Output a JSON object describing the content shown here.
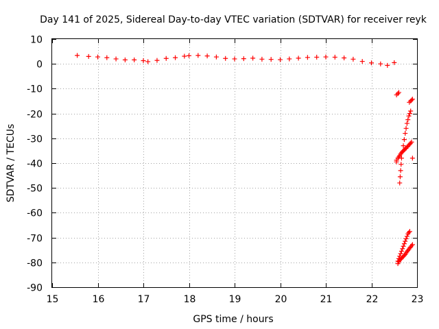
{
  "chart_data": {
    "type": "scatter",
    "title": "Day 141 of 2025, Sidereal Day-to-day VTEC variation (SDTVAR) for receiver reyk",
    "xlabel": "GPS time / hours",
    "ylabel": "SDTVAR / TECUs",
    "xlim": [
      15,
      23
    ],
    "ylim": [
      -90,
      10
    ],
    "xticks": [
      "15",
      "16",
      "17",
      "18",
      "19",
      "20",
      "21",
      "22",
      "23"
    ],
    "yticks": [
      "10",
      "0",
      "-10",
      "-20",
      "-30",
      "-40",
      "-50",
      "-60",
      "-70",
      "-80",
      "-90"
    ],
    "grid": true,
    "marker": "+",
    "color": "#ff0000",
    "series": [
      {
        "name": "SDTVAR",
        "x": [
          15.55,
          15.8,
          16.0,
          16.2,
          16.4,
          16.6,
          16.8,
          17.0,
          17.1,
          17.3,
          17.5,
          17.7,
          17.9,
          18.0,
          18.2,
          18.4,
          18.6,
          18.8,
          19.0,
          19.2,
          19.4,
          19.6,
          19.8,
          20.0,
          20.2,
          20.4,
          20.6,
          20.8,
          21.0,
          21.2,
          21.4,
          21.6,
          21.8,
          22.0,
          22.2,
          22.35,
          22.5,
          22.55,
          22.55,
          22.58,
          22.6,
          22.62,
          22.64,
          22.66,
          22.68,
          22.7,
          22.72,
          22.74,
          22.76,
          22.78,
          22.8,
          22.82,
          22.84,
          22.86,
          22.88,
          22.9,
          22.62,
          22.63,
          22.64,
          22.65,
          22.66,
          22.68,
          22.7,
          22.72,
          22.74,
          22.76,
          22.78,
          22.8,
          22.82,
          22.84,
          22.86,
          22.58,
          22.6,
          22.62,
          22.64,
          22.66,
          22.68,
          22.7,
          22.72,
          22.74,
          22.76,
          22.78,
          22.8,
          22.82,
          22.84,
          22.86,
          22.88,
          22.9,
          22.58,
          22.6,
          22.62,
          22.64,
          22.66,
          22.68,
          22.7,
          22.72,
          22.74,
          22.76,
          22.78,
          22.8,
          22.82,
          22.84,
          22.55,
          22.58,
          22.6,
          22.83,
          22.86,
          22.88,
          22.9
        ],
        "y": [
          3.4,
          3.0,
          2.8,
          2.5,
          2.0,
          1.6,
          1.6,
          1.3,
          0.9,
          1.4,
          2.2,
          2.5,
          3.1,
          3.3,
          3.4,
          3.2,
          2.8,
          2.2,
          2.0,
          2.1,
          2.3,
          1.9,
          1.8,
          1.7,
          2.0,
          2.3,
          2.6,
          2.7,
          2.8,
          2.7,
          2.4,
          1.9,
          1.0,
          0.4,
          0.0,
          -0.6,
          0.5,
          -38.8,
          -39.5,
          -38.0,
          -37.5,
          -37.0,
          -36.3,
          -35.8,
          -35.4,
          -35.0,
          -34.6,
          -34.3,
          -34.0,
          -33.5,
          -33.2,
          -32.7,
          -32.3,
          -32.0,
          -31.5,
          -38.0,
          -48.0,
          -45.5,
          -43.0,
          -40.5,
          -38.0,
          -35.5,
          -33.0,
          -30.5,
          -28.0,
          -26.0,
          -24.0,
          -22.5,
          -21.0,
          -20.0,
          -19.0,
          -80.5,
          -79.8,
          -79.2,
          -78.8,
          -78.4,
          -78.0,
          -77.6,
          -77.2,
          -76.8,
          -76.2,
          -75.7,
          -75.2,
          -74.7,
          -74.2,
          -73.8,
          -73.3,
          -72.8,
          -79.5,
          -78.5,
          -77.5,
          -76.5,
          -75.5,
          -74.5,
          -73.5,
          -72.5,
          -71.5,
          -70.5,
          -69.5,
          -68.5,
          -68.0,
          -67.5,
          -12.5,
          -12.0,
          -11.5,
          -15.5,
          -15.0,
          -14.6,
          -14.2
        ]
      }
    ]
  }
}
